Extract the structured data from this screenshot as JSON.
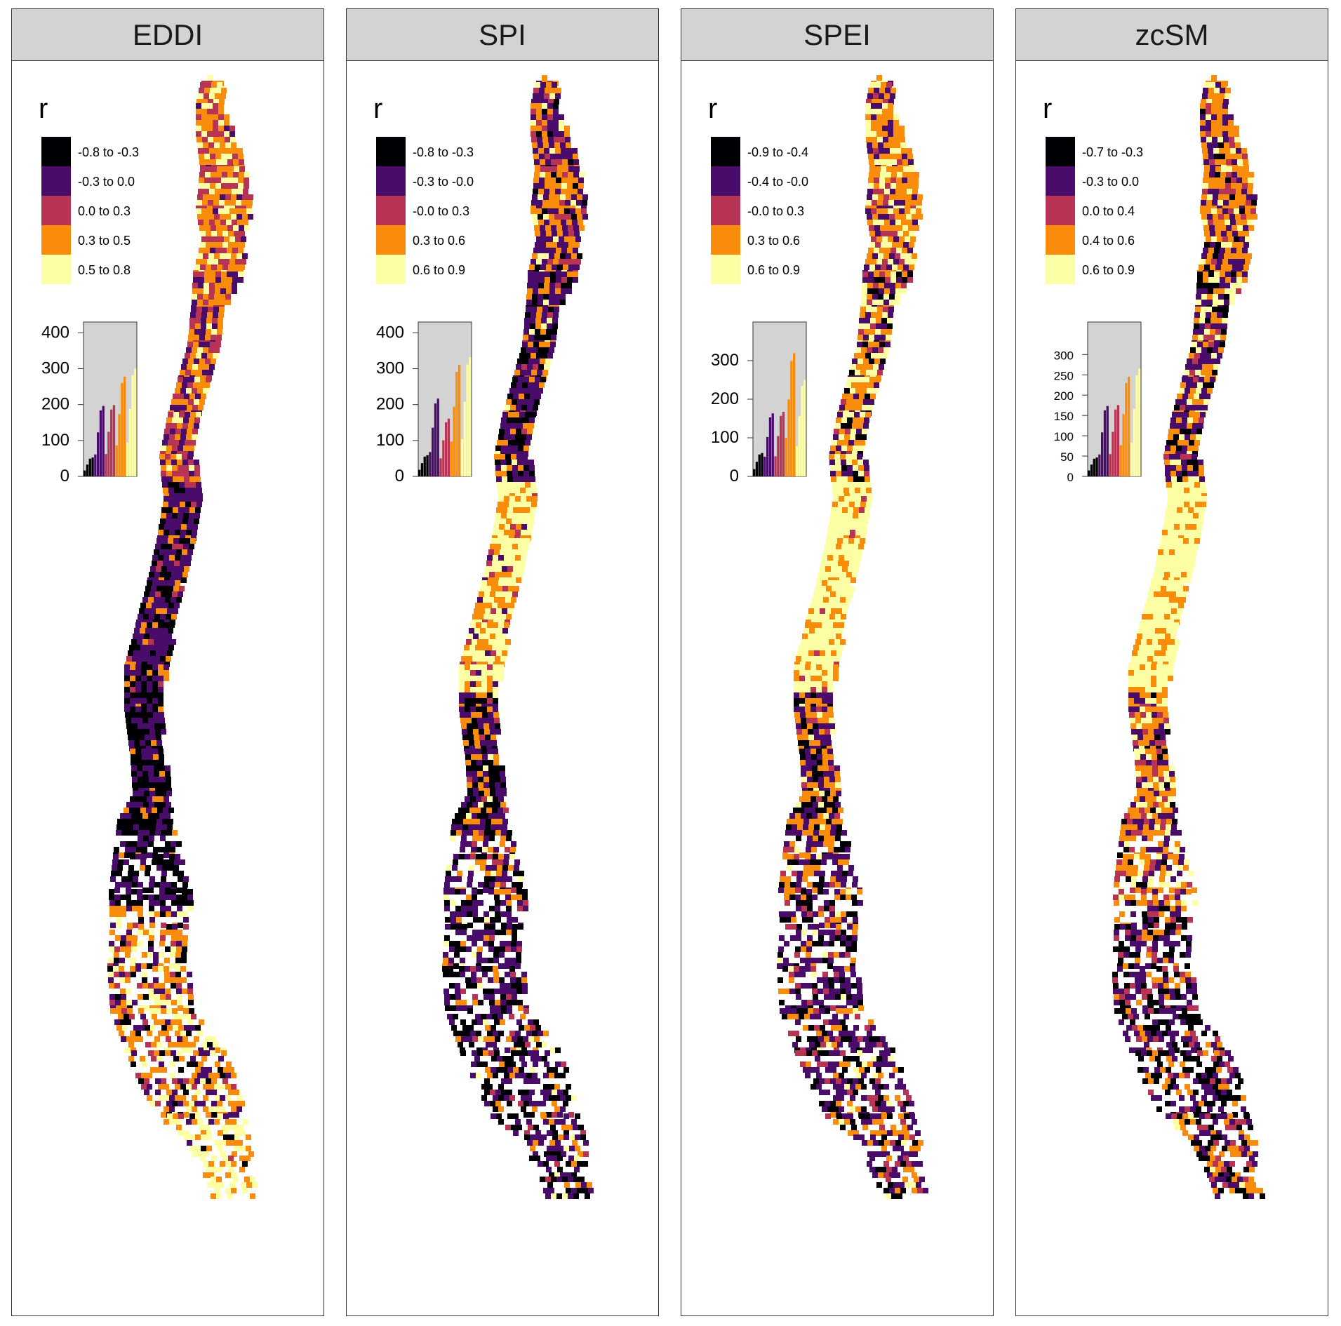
{
  "palette": [
    "#000004",
    "#4a0c6b",
    "#b73455",
    "#f98c0a",
    "#fcffa4"
  ],
  "legend_title": "r",
  "panels": [
    {
      "title": "EDDI",
      "legend": [
        "-0.8 to -0.3",
        "-0.3 to 0.0",
        "0.0 to 0.3",
        "0.3 to 0.5",
        "0.5 to 0.8"
      ],
      "hist": {
        "ymax": 430,
        "ticks": [
          "400",
          "300",
          "200",
          "100",
          "0"
        ],
        "tick_values": [
          400,
          300,
          200,
          100,
          0
        ]
      }
    },
    {
      "title": "SPI",
      "legend": [
        "-0.8 to -0.3",
        "-0.3 to -0.0",
        "-0.0 to 0.3",
        "0.3 to 0.6",
        "0.6 to 0.9"
      ],
      "hist": {
        "ymax": 430,
        "ticks": [
          "400",
          "300",
          "200",
          "100",
          "0"
        ],
        "tick_values": [
          400,
          300,
          200,
          100,
          0
        ]
      }
    },
    {
      "title": "SPEI",
      "legend": [
        "-0.9 to -0.4",
        "-0.4 to -0.0",
        "-0.0 to 0.3",
        "0.3 to 0.6",
        "0.6 to 0.9"
      ],
      "hist": {
        "ymax": 400,
        "ticks": [
          "300",
          "200",
          "100",
          "0"
        ],
        "tick_values": [
          300,
          200,
          100,
          0
        ]
      }
    },
    {
      "title": "zcSM",
      "legend": [
        "-0.7 to -0.3",
        "-0.3 to 0.0",
        "0.0 to 0.4",
        "0.4 to 0.6",
        "0.6 to 0.9"
      ],
      "hist": {
        "ymax": 380,
        "ticks": [
          "300",
          "250",
          "200",
          "150",
          "100",
          "50",
          "0"
        ],
        "tick_values": [
          300,
          250,
          200,
          150,
          100,
          50,
          0
        ]
      }
    }
  ]
}
